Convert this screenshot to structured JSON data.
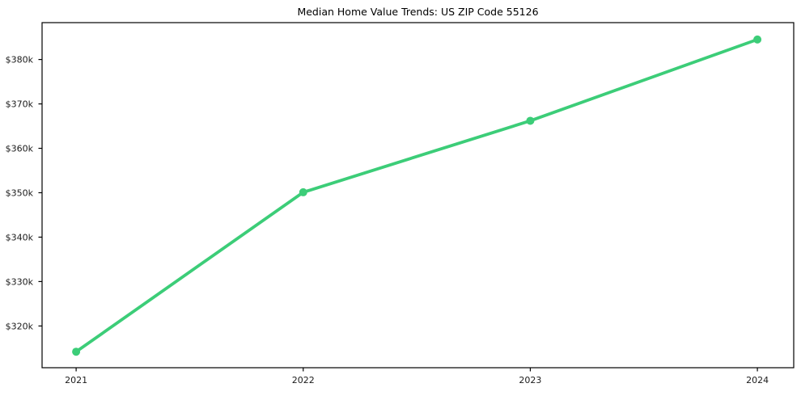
{
  "chart_data": {
    "type": "line",
    "title": "Median Home Value Trends: US ZIP Code 55126",
    "x": [
      2021,
      2022,
      2023,
      2024
    ],
    "x_tick_labels": [
      "2021",
      "2022",
      "2023",
      "2024"
    ],
    "series": [
      {
        "name": "median-home-value",
        "values_thousands": [
          314.2,
          350.1,
          366.2,
          384.5
        ],
        "color": "#3ccd78"
      }
    ],
    "y_ticks_thousands": [
      320,
      330,
      340,
      350,
      360,
      370,
      380
    ],
    "y_tick_labels": [
      "$320k",
      "$330k",
      "$340k",
      "$350k",
      "$360k",
      "$370k",
      "$380k"
    ],
    "xlim": [
      2020.85,
      2024.16
    ],
    "ylim_thousands": [
      310.6,
      388.3
    ],
    "grid": false,
    "legend": "none",
    "marker": "circle",
    "line_width": 3.8,
    "marker_radius": 5,
    "axis_color": "#000000",
    "tick_label_color": "#1a1a1a",
    "background_color": "#ffffff"
  }
}
